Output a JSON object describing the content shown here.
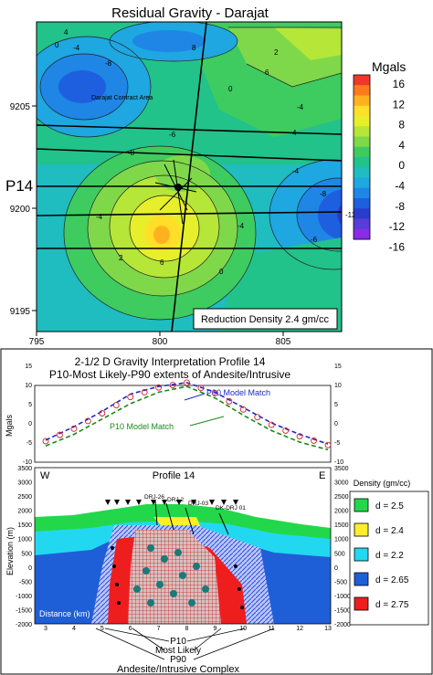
{
  "top_map": {
    "title": "Residual Gravity - Darajat",
    "profile_label": "P14",
    "area_label": "Darajat Contract Area",
    "x_ticks": [
      "795",
      "800",
      "805"
    ],
    "y_ticks": [
      "9205",
      "9200",
      "9195"
    ],
    "contour_labels": [
      "4",
      "0",
      "-4",
      "-8",
      "8",
      "6",
      "0",
      "-4",
      "2",
      "-6",
      "-8",
      "4",
      "-4",
      "-4",
      "-4",
      "-6",
      "-8",
      "-12",
      "0",
      "2",
      "6"
    ],
    "reduction_label": "Reduction Density 2.4 gm/cc",
    "colorbar_title": "Mgals",
    "colorbar_ticks": [
      "16",
      "12",
      "8",
      "4",
      "0",
      "-4",
      "-8",
      "-12",
      "-16"
    ],
    "colorbar_colors": [
      "#f0382a",
      "#ff7a1e",
      "#ffb21e",
      "#ffdf28",
      "#e6ef2a",
      "#b5e638",
      "#7fd84a",
      "#3ecb60",
      "#22c28b",
      "#1fbcc0",
      "#1ea7e0",
      "#1f86e6",
      "#1e5fe0",
      "#2a3ccc",
      "#5a3cd8",
      "#8a2be6"
    ]
  },
  "bottom_panel": {
    "title_line1": "2-1/2 D Gravity Interpretation Profile 14",
    "title_line2": "P10-Most Likely-P90 extents of Andesite/Intrusive",
    "mgal_axis_label": "Mgals",
    "mgal_ticks": [
      "15",
      "10",
      "5",
      "0",
      "-5",
      "-10"
    ],
    "p90_label": "P90 Model Match",
    "p10_label": "P10 Model  Match",
    "section_title": "Profile 14",
    "west_label": "W",
    "east_label": "E",
    "elev_axis_label": "Elevation (m)",
    "elev_ticks": [
      "3500",
      "3000",
      "2500",
      "2000",
      "1500",
      "1000",
      "500",
      "0",
      "-500",
      "-1000",
      "-1500",
      "-2000"
    ],
    "distance_label": "Distance (km)",
    "distance_ticks": [
      "3",
      "4",
      "5",
      "6",
      "7",
      "8",
      "9",
      "10",
      "11",
      "12",
      "13"
    ],
    "wells": [
      "DRJ-26",
      "DRJ 2",
      "DRJ-03",
      "DK-DRJ 01"
    ],
    "bottom_labels": [
      "P10",
      "Most Likely",
      "P90"
    ],
    "complex_label": "Andesite/Intrusive Complex",
    "legend_title": "Density (gm/cc)",
    "legend": [
      {
        "label": "d = 2.5",
        "color": "#22d84a"
      },
      {
        "label": "d = 2.4",
        "color": "#ffee2a"
      },
      {
        "label": "d = 2.2",
        "color": "#22d8f0"
      },
      {
        "label": "d = 2.65",
        "color": "#1e5fd8"
      },
      {
        "label": "d = 2.75",
        "color": "#ee1e1e"
      }
    ]
  },
  "chart_data": [
    {
      "type": "heatmap",
      "title": "Residual Gravity - Darajat",
      "xlabel": "",
      "ylabel": "",
      "x_ticks": [
        795,
        800,
        805
      ],
      "y_ticks": [
        9205,
        9200,
        9195
      ],
      "xlim": [
        793.7,
        809.6
      ],
      "ylim": [
        9193.5,
        9209.3
      ],
      "colorbar_unit": "Mgals",
      "colorbar_range": [
        -16,
        16
      ],
      "note": "Reduction Density 2.4 gm/cc"
    },
    {
      "type": "line",
      "title": "2-1/2 D Gravity Interpretation Profile 14",
      "ylabel": "Mgals",
      "x": [
        3,
        4,
        5,
        6,
        7,
        8,
        9,
        10,
        11,
        12,
        13
      ],
      "ylim": [
        -10,
        15
      ],
      "series": [
        {
          "name": "P90 Model Match",
          "values": [
            -4.5,
            -1,
            3,
            7.5,
            9.5,
            10.5,
            8,
            4,
            0,
            -3,
            -5.5
          ]
        },
        {
          "name": "P10 Model  Match",
          "values": [
            -6,
            -3,
            1,
            5,
            8,
            9.5,
            6.5,
            2,
            -2,
            -5,
            -7
          ]
        }
      ]
    },
    {
      "type": "area",
      "title": "Profile 14",
      "xlabel": "Distance (km)",
      "ylabel": "Elevation (m)",
      "xlim": [
        2.5,
        13
      ],
      "ylim": [
        -2000,
        3500
      ],
      "series": [
        {
          "name": "d = 2.5",
          "values": []
        },
        {
          "name": "d = 2.4",
          "values": []
        },
        {
          "name": "d = 2.2",
          "values": []
        },
        {
          "name": "d = 2.65",
          "values": []
        },
        {
          "name": "d = 2.75",
          "values": []
        }
      ]
    }
  ]
}
